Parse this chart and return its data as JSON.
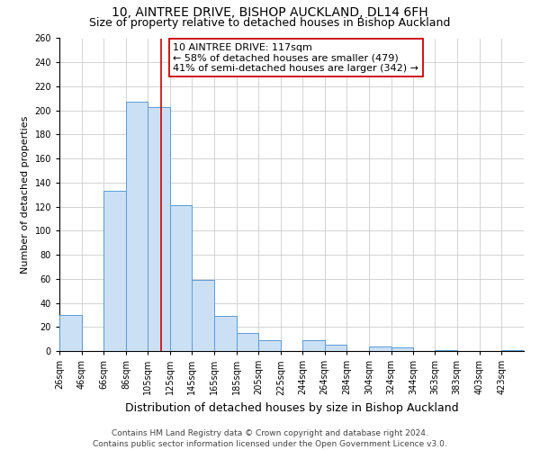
{
  "title": "10, AINTREE DRIVE, BISHOP AUCKLAND, DL14 6FH",
  "subtitle": "Size of property relative to detached houses in Bishop Auckland",
  "xlabel": "Distribution of detached houses by size in Bishop Auckland",
  "ylabel": "Number of detached properties",
  "bin_labels": [
    "26sqm",
    "46sqm",
    "66sqm",
    "86sqm",
    "105sqm",
    "125sqm",
    "145sqm",
    "165sqm",
    "185sqm",
    "205sqm",
    "225sqm",
    "244sqm",
    "264sqm",
    "284sqm",
    "304sqm",
    "324sqm",
    "344sqm",
    "363sqm",
    "383sqm",
    "403sqm",
    "423sqm"
  ],
  "bar_heights": [
    30,
    0,
    133,
    207,
    203,
    121,
    59,
    29,
    15,
    9,
    0,
    9,
    5,
    0,
    4,
    3,
    0,
    1,
    0,
    0,
    1
  ],
  "bar_color": "#cce0f5",
  "bar_edge_color": "#5b9bd5",
  "vline_x": 117,
  "vline_color": "#cc0000",
  "annotation_title": "10 AINTREE DRIVE: 117sqm",
  "annotation_line1": "← 58% of detached houses are smaller (479)",
  "annotation_line2": "41% of semi-detached houses are larger (342) →",
  "annotation_box_color": "#ffffff",
  "annotation_box_edge_color": "#cc0000",
  "ylim": [
    0,
    260
  ],
  "yticks": [
    0,
    20,
    40,
    60,
    80,
    100,
    120,
    140,
    160,
    180,
    200,
    220,
    240,
    260
  ],
  "footer1": "Contains HM Land Registry data © Crown copyright and database right 2024.",
  "footer2": "Contains public sector information licensed under the Open Government Licence v3.0.",
  "bg_color": "#ffffff",
  "grid_color": "#cccccc",
  "title_fontsize": 10,
  "subtitle_fontsize": 9,
  "xlabel_fontsize": 9,
  "ylabel_fontsize": 8,
  "tick_fontsize": 7,
  "annotation_fontsize": 8,
  "footer_fontsize": 6.5
}
